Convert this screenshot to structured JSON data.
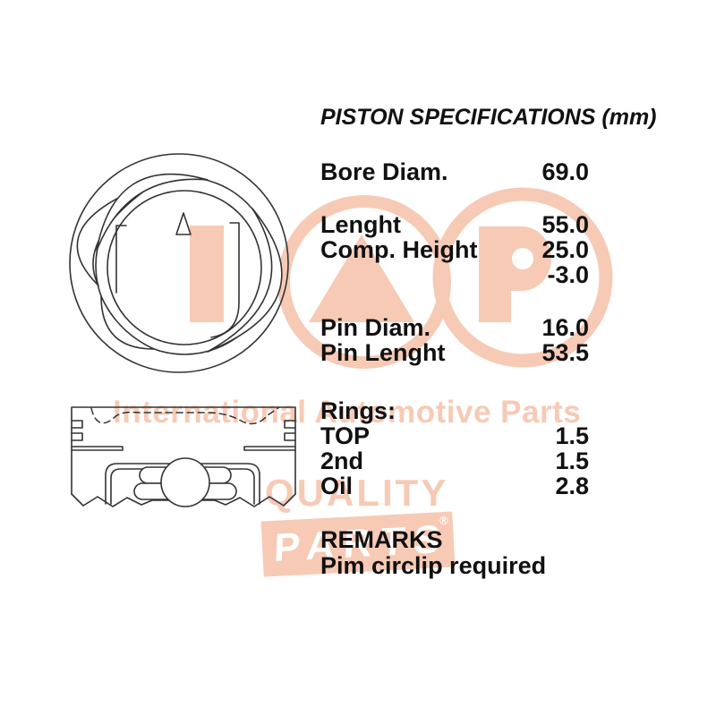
{
  "title": "PISTON SPECIFICATIONS (mm)",
  "colors": {
    "background": "#ffffff",
    "watermark": "#f7cab5",
    "line_art": "#333333",
    "text": "#111111",
    "parts_box_text": "#ffffff"
  },
  "specs": {
    "rows": [
      {
        "label": "Bore Diam.",
        "value": "69.0"
      },
      {
        "spacer": true,
        "size": "sm"
      },
      {
        "label": "Lenght",
        "value": "55.0"
      },
      {
        "label": "Comp. Height",
        "value": "25.0"
      },
      {
        "label": "",
        "value": "-3.0"
      },
      {
        "spacer": true,
        "size": "sm"
      },
      {
        "label": "Pin Diam.",
        "value": "16.0"
      },
      {
        "label": "Pin Lenght",
        "value": "53.5"
      },
      {
        "spacer": true,
        "size": "lg"
      },
      {
        "label": "Rings:",
        "value": ""
      },
      {
        "label": "TOP",
        "value": "1.5"
      },
      {
        "label": "2nd",
        "value": "1.5"
      },
      {
        "label": "Oil",
        "value": "2.8"
      }
    ]
  },
  "remarks": {
    "header": "REMARKS",
    "note": "Pim circlip required"
  },
  "watermark": {
    "logo_letters": "IAP",
    "tagline": "International Automotive Parts",
    "quality": "QUALITY",
    "parts": "PARTS",
    "registered_mark": "®"
  },
  "drawings": {
    "top_view": "piston-crown-top-view",
    "side_view": "piston-side-cross-section"
  }
}
